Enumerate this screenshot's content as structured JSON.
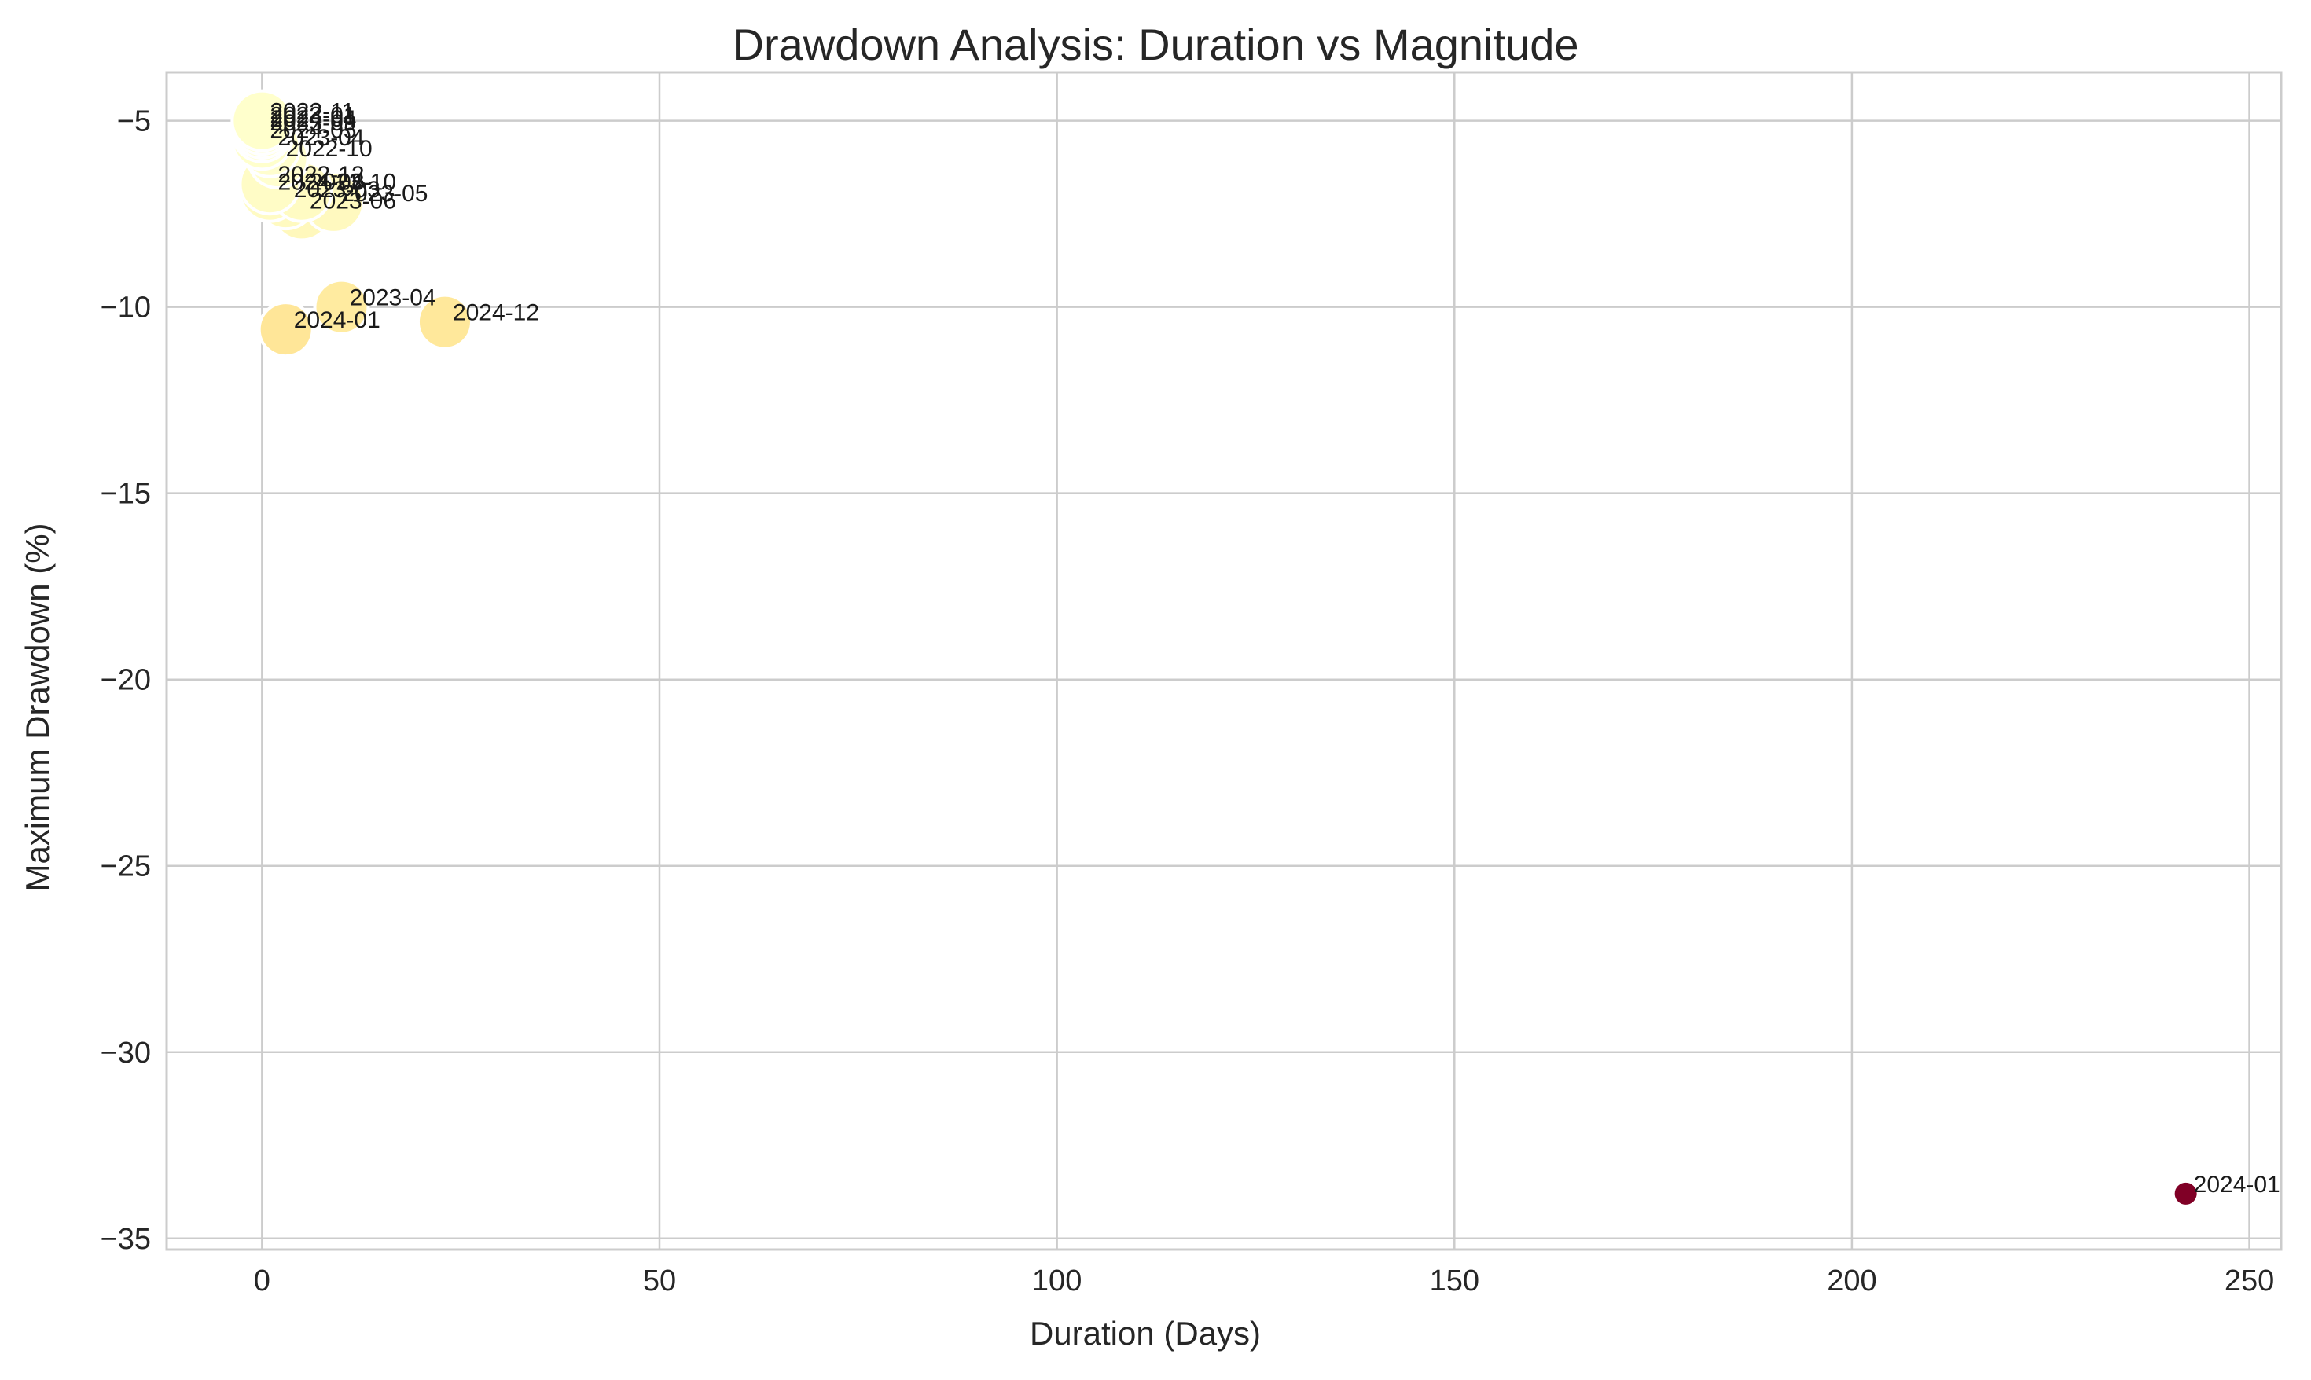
{
  "chart_data": {
    "type": "scatter",
    "title": "Drawdown Analysis: Duration vs Magnitude",
    "xlabel": "Duration (Days)",
    "ylabel": "Maximum Drawdown (%)",
    "xlim": [
      -12,
      254
    ],
    "ylim": [
      -35.3,
      -3.7
    ],
    "xticks": [
      0,
      50,
      100,
      150,
      200,
      250
    ],
    "yticks": [
      -5,
      -10,
      -15,
      -20,
      -25,
      -30,
      -35
    ],
    "grid": true,
    "legend": "none",
    "colormap": "YlOrRd (by drawdown magnitude)",
    "points": [
      {
        "label": "2022-11",
        "x": 0,
        "y": -5.0,
        "size": 38,
        "color": "#ffffcc"
      },
      {
        "label": "2023-01",
        "x": 0,
        "y": -5.1,
        "size": 38,
        "color": "#ffffcc"
      },
      {
        "label": "2024-04",
        "x": 0,
        "y": -5.2,
        "size": 38,
        "color": "#ffffcc"
      },
      {
        "label": "2023-09",
        "x": 0,
        "y": -5.3,
        "size": 38,
        "color": "#ffffcc"
      },
      {
        "label": "2024-05",
        "x": 0,
        "y": -5.5,
        "size": 38,
        "color": "#ffffcd"
      },
      {
        "label": "2023-04",
        "x": 1,
        "y": -5.7,
        "size": 38,
        "color": "#fffece"
      },
      {
        "label": "2022-10",
        "x": 2,
        "y": -6.0,
        "size": 38,
        "color": "#fffecf"
      },
      {
        "label": "2022-12",
        "x": 1,
        "y": -6.7,
        "size": 38,
        "color": "#fffcc6"
      },
      {
        "label": "2024-08",
        "x": 1,
        "y": -6.9,
        "size": 38,
        "color": "#fffbc4"
      },
      {
        "label": "2023-10",
        "x": 5,
        "y": -6.9,
        "size": 38,
        "color": "#fffbc3"
      },
      {
        "label": "2023-03",
        "x": 3,
        "y": -7.1,
        "size": 38,
        "color": "#fffac1"
      },
      {
        "label": "2023-05",
        "x": 9,
        "y": -7.2,
        "size": 38,
        "color": "#fff9bf"
      },
      {
        "label": "2023-06",
        "x": 5,
        "y": -7.4,
        "size": 38,
        "color": "#fff8bc"
      },
      {
        "label": "2023-04",
        "x": 10,
        "y": -10.0,
        "size": 34,
        "color": "#ffeba0"
      },
      {
        "label": "2024-12",
        "x": 23,
        "y": -10.4,
        "size": 34,
        "color": "#ffe89b"
      },
      {
        "label": "2024-01",
        "x": 3,
        "y": -10.6,
        "size": 34,
        "color": "#ffe698"
      },
      {
        "label": "2024-01",
        "x": 242,
        "y": -33.8,
        "size": 16,
        "color": "#800026"
      }
    ]
  }
}
